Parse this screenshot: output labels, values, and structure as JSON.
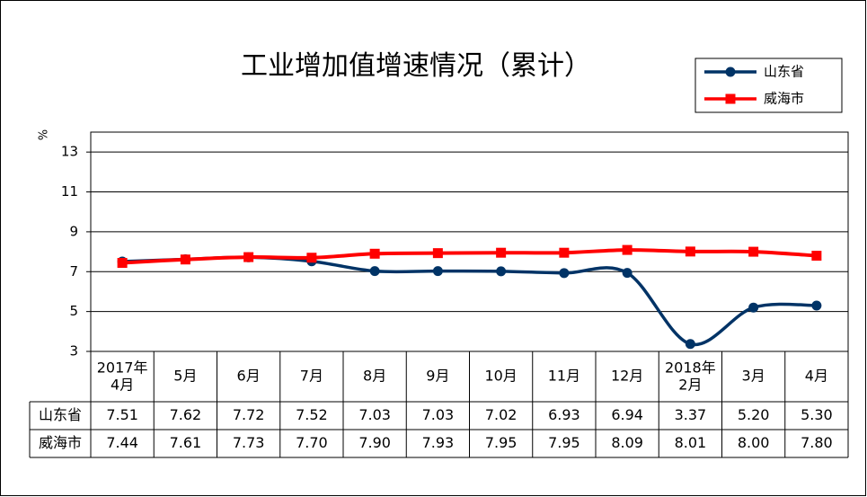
{
  "chart_data": {
    "type": "line",
    "title": "工业增加值增速情况（累计）",
    "y_label": "%",
    "categories": [
      "2017年\n4月",
      "5月",
      "6月",
      "7月",
      "8月",
      "9月",
      "10月",
      "11月",
      "12月",
      "2018年\n2月",
      "3月",
      "4月"
    ],
    "series": [
      {
        "name": "山东省",
        "color": "#003366",
        "marker": "circle",
        "values": [
          7.51,
          7.62,
          7.72,
          7.52,
          7.03,
          7.03,
          7.02,
          6.93,
          6.94,
          3.37,
          5.2,
          5.3
        ],
        "value_labels": [
          "7.51",
          "7.62",
          "7.72",
          "7.52",
          "7.03",
          "7.03",
          "7.02",
          "6.93",
          "6.94",
          "3.37",
          "5.20",
          "5.30"
        ]
      },
      {
        "name": "威海市",
        "color": "#ff0000",
        "marker": "square",
        "values": [
          7.44,
          7.61,
          7.73,
          7.7,
          7.9,
          7.93,
          7.95,
          7.95,
          8.09,
          8.01,
          8.0,
          7.8
        ],
        "value_labels": [
          "7.44",
          "7.61",
          "7.73",
          "7.70",
          "7.90",
          "7.93",
          "7.95",
          "7.95",
          "8.09",
          "8.01",
          "8.00",
          "7.80"
        ]
      }
    ],
    "ylim": [
      3,
      14
    ],
    "yticks": [
      3,
      5,
      7,
      9,
      11,
      13
    ],
    "grid": true,
    "legend": "upper right"
  }
}
